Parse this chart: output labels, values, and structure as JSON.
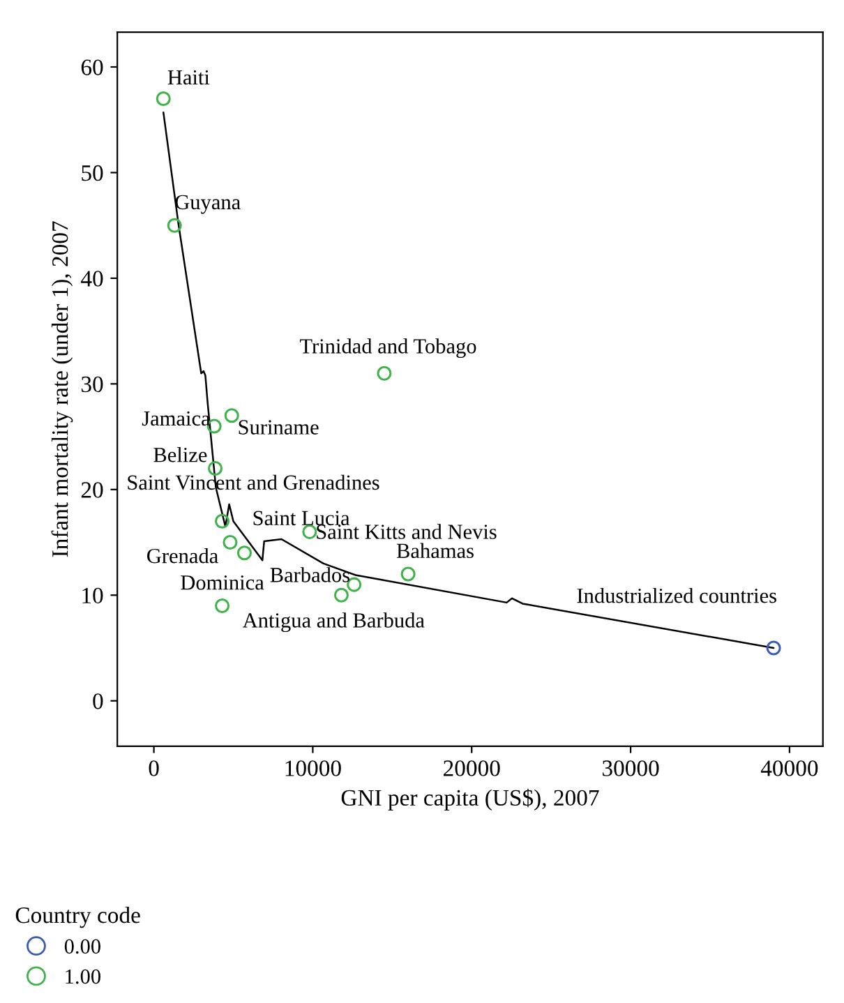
{
  "chart_data": {
    "type": "scatter",
    "xlabel": "GNI per capita (US$), 2007",
    "ylabel": "Infant mortality rate (under 1), 2007",
    "legend_title": "Country code",
    "series": [
      {
        "name": "0.00",
        "color": "#3b5bb5",
        "x": [
          39000
        ],
        "values": [
          5
        ]
      },
      {
        "name": "1.00",
        "color": "#3fb34a",
        "x": [
          600,
          1300,
          14500,
          3800,
          4900,
          3860,
          4300,
          4800,
          5700,
          9800,
          16000,
          12600,
          11800,
          4300
        ],
        "values": [
          57,
          45,
          31,
          26,
          27,
          22,
          17,
          15,
          14,
          16,
          12,
          11,
          10,
          9
        ]
      },
      {
        "type": "line",
        "color": "#000000",
        "marker": "none",
        "x": [
          600,
          1550,
          2980,
          3130,
          3240,
          3390,
          3900,
          4500,
          4740,
          5000,
          6830,
          6940,
          8030,
          10670,
          12700,
          22200,
          22540,
          23200,
          39000
        ],
        "values": [
          55.7,
          45.1,
          31.0,
          31.2,
          30.8,
          28.1,
          20.2,
          16.5,
          18.6,
          17.0,
          13.3,
          15.1,
          15.3,
          13.0,
          11.9,
          9.3,
          9.7,
          9.2,
          5.0
        ]
      }
    ],
    "annotations": [
      {
        "text": "Industrialized countries",
        "x": 39000,
        "y": 5
      },
      {
        "text": "Haiti",
        "x": 600,
        "y": 57
      },
      {
        "text": "Guyana",
        "x": 1300,
        "y": 45
      },
      {
        "text": "Trinidad and Tobago",
        "x": 14500,
        "y": 31
      },
      {
        "text": "Jamaica",
        "x": 3800,
        "y": 26
      },
      {
        "text": "Suriname",
        "x": 4900,
        "y": 27
      },
      {
        "text": "Belize",
        "x": 3860,
        "y": 22
      },
      {
        "text": "Saint Vincent and Grenadines",
        "x": 4300,
        "y": 17
      },
      {
        "text": "Grenada",
        "x": 4800,
        "y": 15
      },
      {
        "text": "Saint Lucia",
        "x": 5700,
        "y": 14
      },
      {
        "text": "Saint Kitts and Nevis",
        "x": 9800,
        "y": 16
      },
      {
        "text": "Bahamas",
        "x": 16000,
        "y": 12
      },
      {
        "text": "Barbados",
        "x": 12600,
        "y": 11
      },
      {
        "text": "Antigua and Barbuda",
        "x": 11800,
        "y": 10
      },
      {
        "text": "Dominica",
        "x": 4300,
        "y": 9
      }
    ],
    "marker": "circle",
    "legend": "bottom left",
    "grid": false,
    "xlim": [
      -2300,
      42100
    ],
    "xticks": [
      0,
      10000,
      20000,
      30000,
      40000
    ],
    "ylim": [
      -4.3,
      63.3
    ],
    "yticks": [
      0,
      10,
      20,
      30,
      40,
      50,
      60
    ]
  }
}
